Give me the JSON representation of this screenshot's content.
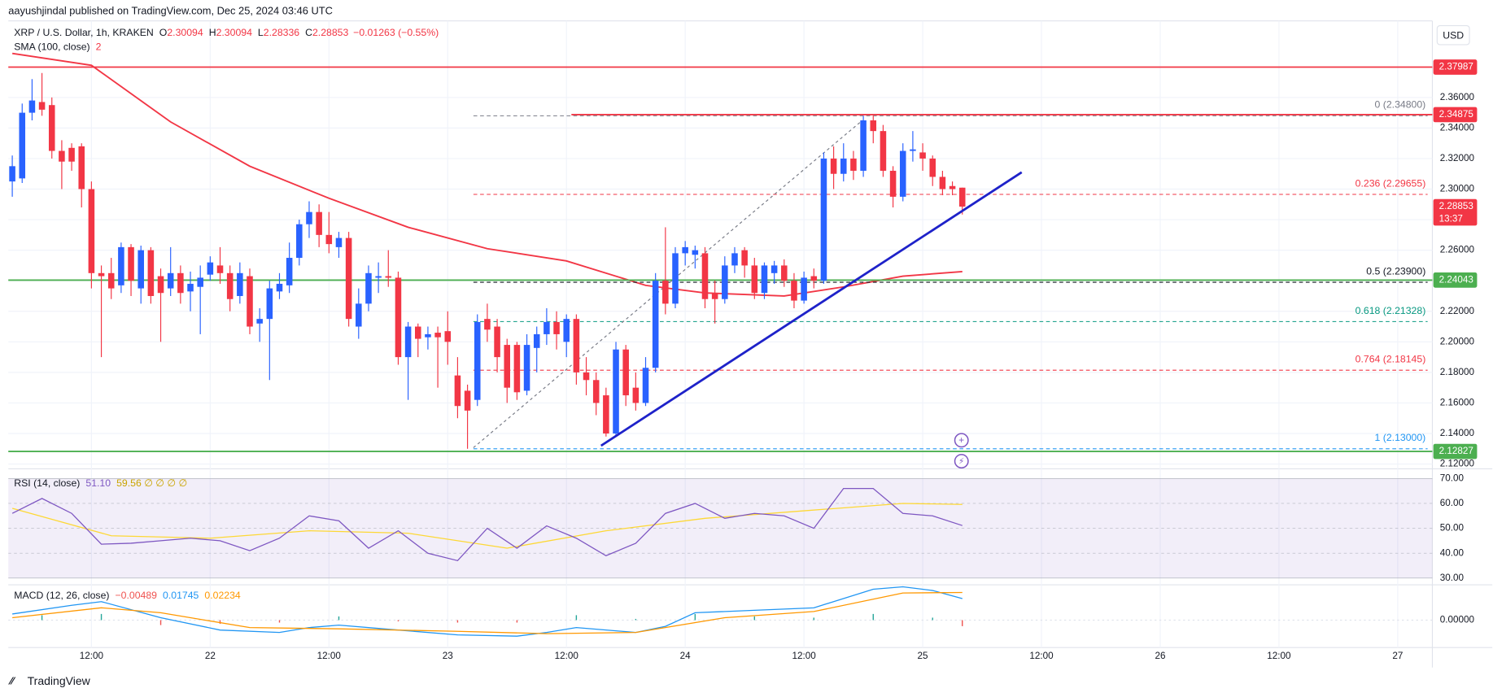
{
  "chart_data": {
    "type": "candlestick",
    "published": "aayushjindal published on TradingView.com, Dec 25, 2024 03:46 UTC",
    "title": "XRP / U.S. Dollar, 1h, KRAKEN",
    "currency": "USD",
    "brand": "TradingView",
    "ohlc_labels": [
      "O",
      "H",
      "L",
      "C"
    ],
    "change_label": "−0.01263 (−0.55%)",
    "countdown": "13:37",
    "up_color": "#2962ff",
    "down_color": "#f23645",
    "open": [
      2.305,
      2.307,
      2.35,
      2.357,
      2.355,
      2.325,
      2.327,
      2.328,
      2.3,
      2.245,
      2.245,
      2.237,
      2.262,
      2.235,
      2.26,
      2.243,
      2.235,
      2.245,
      2.233,
      2.236,
      2.244,
      2.25,
      2.245,
      2.23,
      2.243,
      2.212,
      2.215,
      2.233,
      2.237,
      2.255,
      2.277,
      2.285,
      2.27,
      2.262,
      2.268,
      2.21,
      2.225,
      2.242,
      2.243,
      2.242,
      2.19,
      2.21,
      2.203,
      2.206,
      2.207,
      2.178,
      2.168,
      2.162,
      2.215,
      2.21,
      2.198,
      2.198,
      2.168,
      2.196,
      2.205,
      2.213,
      2.2,
      2.215,
      2.18,
      2.175,
      2.165,
      2.14,
      2.195,
      2.17,
      2.16,
      2.183,
      2.24,
      2.225,
      2.258,
      2.257,
      2.258,
      2.232,
      2.228,
      2.25,
      2.26,
      2.25,
      2.232,
      2.245,
      2.25,
      2.24,
      2.227,
      2.243,
      2.24,
      2.32,
      2.31,
      2.32,
      2.312,
      2.345,
      2.338,
      2.312,
      2.295,
      2.325,
      2.324,
      2.32,
      2.308,
      2.302,
      2.30094
    ],
    "high": [
      2.322,
      2.356,
      2.372,
      2.376,
      2.36,
      2.332,
      2.33,
      2.33,
      2.305,
      2.25,
      2.255,
      2.265,
      2.264,
      2.263,
      2.262,
      2.248,
      2.262,
      2.25,
      2.246,
      2.25,
      2.256,
      2.262,
      2.25,
      2.252,
      2.248,
      2.222,
      2.24,
      2.245,
      2.265,
      2.28,
      2.292,
      2.29,
      2.285,
      2.272,
      2.272,
      2.235,
      2.25,
      2.252,
      2.26,
      2.246,
      2.213,
      2.212,
      2.21,
      2.21,
      2.22,
      2.19,
      2.172,
      2.218,
      2.225,
      2.215,
      2.202,
      2.2,
      2.205,
      2.21,
      2.222,
      2.22,
      2.218,
      2.218,
      2.19,
      2.18,
      2.17,
      2.2,
      2.198,
      2.18,
      2.19,
      2.245,
      2.275,
      2.262,
      2.266,
      2.263,
      2.262,
      2.24,
      2.256,
      2.262,
      2.262,
      2.255,
      2.252,
      2.253,
      2.254,
      2.245,
      2.246,
      2.248,
      2.324,
      2.328,
      2.33,
      2.325,
      2.348,
      2.348,
      2.342,
      2.315,
      2.33,
      2.338,
      2.33,
      2.322,
      2.312,
      2.305,
      2.30094
    ],
    "low": [
      2.295,
      2.304,
      2.345,
      2.348,
      2.32,
      2.3,
      2.312,
      2.288,
      2.235,
      2.19,
      2.228,
      2.232,
      2.23,
      2.225,
      2.225,
      2.2,
      2.23,
      2.225,
      2.22,
      2.205,
      2.24,
      2.238,
      2.22,
      2.225,
      2.205,
      2.2,
      2.175,
      2.228,
      2.232,
      2.25,
      2.268,
      2.262,
      2.258,
      2.255,
      2.21,
      2.202,
      2.22,
      2.232,
      2.236,
      2.185,
      2.162,
      2.19,
      2.195,
      2.17,
      2.185,
      2.15,
      2.13,
      2.158,
      2.2,
      2.18,
      2.16,
      2.162,
      2.165,
      2.18,
      2.198,
      2.195,
      2.19,
      2.172,
      2.165,
      2.152,
      2.138,
      2.138,
      2.158,
      2.155,
      2.158,
      2.18,
      2.218,
      2.222,
      2.25,
      2.248,
      2.222,
      2.212,
      2.225,
      2.245,
      2.242,
      2.228,
      2.228,
      2.238,
      2.236,
      2.222,
      2.225,
      2.235,
      2.238,
      2.3,
      2.305,
      2.306,
      2.308,
      2.33,
      2.308,
      2.288,
      2.292,
      2.318,
      2.312,
      2.302,
      2.296,
      2.296,
      2.28336
    ],
    "close": [
      2.315,
      2.35,
      2.358,
      2.352,
      2.325,
      2.318,
      2.318,
      2.3,
      2.245,
      2.243,
      2.235,
      2.262,
      2.24,
      2.26,
      2.23,
      2.232,
      2.245,
      2.232,
      2.238,
      2.242,
      2.252,
      2.245,
      2.228,
      2.245,
      2.21,
      2.215,
      2.235,
      2.238,
      2.255,
      2.277,
      2.285,
      2.27,
      2.264,
      2.268,
      2.215,
      2.225,
      2.245,
      2.243,
      2.242,
      2.19,
      2.21,
      2.202,
      2.205,
      2.203,
      2.2,
      2.158,
      2.155,
      2.213,
      2.208,
      2.19,
      2.17,
      2.167,
      2.198,
      2.205,
      2.213,
      2.205,
      2.215,
      2.18,
      2.175,
      2.16,
      2.14,
      2.195,
      2.165,
      2.16,
      2.183,
      2.24,
      2.225,
      2.258,
      2.262,
      2.26,
      2.228,
      2.228,
      2.25,
      2.258,
      2.25,
      2.232,
      2.25,
      2.25,
      2.24,
      2.227,
      2.242,
      2.24,
      2.32,
      2.31,
      2.32,
      2.312,
      2.345,
      2.338,
      2.312,
      2.295,
      2.325,
      2.326,
      2.32,
      2.308,
      2.3,
      2.3,
      2.28853
    ],
    "xlim": [
      -0.4,
      143.5
    ],
    "xticks": [
      {
        "value": 8,
        "label": "12:00"
      },
      {
        "value": 20,
        "label": "22"
      },
      {
        "value": 32,
        "label": "12:00"
      },
      {
        "value": 44,
        "label": "23"
      },
      {
        "value": 56,
        "label": "12:00"
      },
      {
        "value": 68,
        "label": "24"
      },
      {
        "value": 80,
        "label": "12:00"
      },
      {
        "value": 92,
        "label": "25"
      },
      {
        "value": 104,
        "label": "12:00"
      },
      {
        "value": 116,
        "label": "26"
      },
      {
        "value": 128,
        "label": "12:00"
      },
      {
        "value": 140,
        "label": "27"
      }
    ],
    "ylim": [
      2.1169,
      2.4101
    ],
    "yticks": [
      {
        "value": 2.12,
        "label": "2.12000"
      },
      {
        "value": 2.14,
        "label": "2.14000"
      },
      {
        "value": 2.16,
        "label": "2.16000"
      },
      {
        "value": 2.18,
        "label": "2.18000"
      },
      {
        "value": 2.2,
        "label": "2.20000"
      },
      {
        "value": 2.22,
        "label": "2.22000"
      },
      {
        "value": 2.24,
        "label": "2.24000"
      },
      {
        "value": 2.26,
        "label": "2.26000"
      },
      {
        "value": 2.28,
        "label": "2.28000"
      },
      {
        "value": 2.3,
        "label": "2.30000"
      },
      {
        "value": 2.32,
        "label": "2.32000"
      },
      {
        "value": 2.34,
        "label": "2.34000"
      },
      {
        "value": 2.36,
        "label": "2.36000"
      }
    ],
    "grid": true,
    "levels": [
      {
        "value": 2.37987,
        "label": "2.37987",
        "color": "#f23645",
        "x_start": -0.4
      },
      {
        "value": 2.34875,
        "label": "2.34875",
        "color": "#f23645",
        "x_start": 56.5
      },
      {
        "value": 2.24043,
        "label": "2.24043",
        "color": "#4caf50",
        "x_start": -0.4
      },
      {
        "value": 2.12827,
        "label": "2.12827",
        "color": "#4caf50",
        "x_start": -0.4
      }
    ],
    "fib": {
      "x_start": 46.6,
      "levels": [
        {
          "label": "0 (2.34800)",
          "value": 2.348,
          "color": "#787b86"
        },
        {
          "label": "0.236 (2.29655)",
          "value": 2.29655,
          "color": "#f23645"
        },
        {
          "label": "0.5 (2.23900)",
          "value": 2.239,
          "color": "#131722"
        },
        {
          "label": "0.618 (2.21328)",
          "value": 2.21328,
          "color": "#089981"
        },
        {
          "label": "0.764 (2.18145)",
          "value": 2.18145,
          "color": "#f23645"
        },
        {
          "label": "1 (2.13000)",
          "value": 2.13,
          "color": "#2196f3"
        }
      ]
    },
    "fib_line": {
      "x": [
        46.6,
        85.9
      ],
      "values": [
        2.1307,
        2.345
      ],
      "color": "#787b86"
    },
    "trendline": {
      "x": [
        59.5,
        102
      ],
      "values": [
        2.132,
        2.311
      ],
      "color": "#1e22c9"
    },
    "sma": {
      "label": "SMA (100, close)",
      "value_label": "2",
      "color": "#f23645",
      "x": [
        0,
        8,
        16,
        24,
        32,
        40,
        48,
        56,
        64,
        70,
        78,
        84,
        90,
        96
      ],
      "values": [
        2.3888,
        2.381,
        2.344,
        2.315,
        2.294,
        2.275,
        2.261,
        2.253,
        2.237,
        2.232,
        2.23,
        2.236,
        2.243,
        2.246
      ]
    },
    "rsi": {
      "label": "RSI (14, close)",
      "legend_values": "51.10",
      "legend_ma": "59.56 ∅ ∅ ∅ ∅",
      "ylim": [
        27.3,
        73.9
      ],
      "yticks": [
        {
          "value": 30,
          "label": "30.00"
        },
        {
          "value": 40,
          "label": "40.00"
        },
        {
          "value": 50,
          "label": "50.00"
        },
        {
          "value": 60,
          "label": "60.00"
        },
        {
          "value": 70,
          "label": "70.00"
        }
      ],
      "band": [
        30,
        70
      ],
      "color": "#7e57c2",
      "ma_color": "#fdd835",
      "x": [
        0,
        3,
        6,
        9,
        12,
        15,
        18,
        21,
        24,
        27,
        30,
        33,
        36,
        39,
        42,
        45,
        48,
        51,
        54,
        57,
        60,
        63,
        66,
        69,
        72,
        75,
        78,
        81,
        84,
        87,
        90,
        93,
        96
      ],
      "values": [
        56,
        62,
        56,
        43.6,
        44,
        45,
        46,
        45,
        41,
        46,
        55,
        53,
        42,
        49,
        40,
        37,
        50,
        42,
        51,
        46,
        39,
        44,
        56,
        60,
        54,
        56,
        55,
        50,
        66,
        66,
        56,
        55,
        51.1
      ],
      "ma_x": [
        0,
        10,
        20,
        30,
        40,
        50,
        60,
        70,
        80,
        90,
        96
      ],
      "ma_values": [
        58,
        47,
        46,
        49,
        48,
        42,
        49,
        54,
        57,
        60,
        59.56
      ]
    },
    "macd": {
      "label": "MACD (12, 26, close)",
      "legend_hist": "−0.00489",
      "legend_macd": "0.01745",
      "legend_signal": "0.02234",
      "ylim": [
        -0.0222,
        0.0286
      ],
      "yticks": [
        {
          "value": 0,
          "label": "0.00000"
        }
      ],
      "macd_color": "#2196f3",
      "signal_color": "#ff9800",
      "hist_up": "#26a69a",
      "hist_down": "#ef5350",
      "x": [
        0,
        6,
        9,
        15,
        21,
        27,
        30,
        33,
        39,
        45,
        51,
        54,
        57,
        63,
        66,
        69,
        75,
        81,
        87,
        90,
        93,
        96
      ],
      "values": [
        0.005,
        0.012,
        0.015,
        0.002,
        -0.008,
        -0.01,
        -0.006,
        -0.004,
        -0.008,
        -0.012,
        -0.013,
        -0.01,
        -0.006,
        -0.01,
        -0.005,
        0.006,
        0.008,
        0.01,
        0.025,
        0.027,
        0.024,
        0.01745
      ],
      "signal_x": [
        0,
        9,
        15,
        24,
        33,
        45,
        54,
        63,
        72,
        81,
        90,
        96
      ],
      "signal": [
        0.002,
        0.01,
        0.006,
        -0.006,
        -0.007,
        -0.009,
        -0.011,
        -0.01,
        0.002,
        0.007,
        0.022,
        0.02234
      ],
      "hist_x": [
        3,
        9,
        15,
        21,
        27,
        33,
        39,
        45,
        51,
        57,
        63,
        69,
        75,
        81,
        87,
        93,
        96
      ],
      "hist": [
        0.004,
        0.005,
        -0.004,
        -0.003,
        -0.002,
        0.003,
        -0.001,
        -0.002,
        -0.002,
        0.004,
        0.001,
        0.005,
        0.003,
        0.002,
        0.005,
        0.002,
        -0.00489
      ]
    }
  }
}
